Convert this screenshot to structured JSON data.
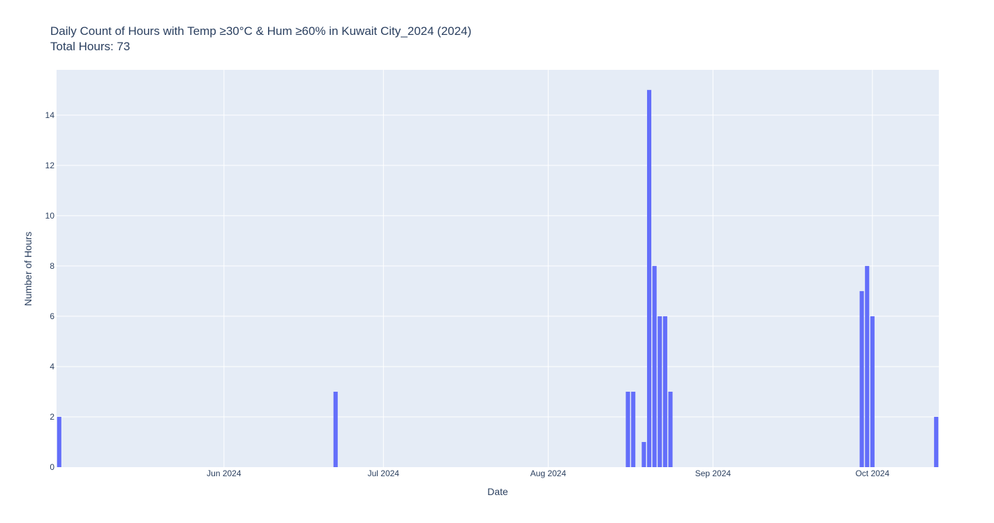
{
  "chart_data": {
    "type": "bar",
    "title": "Daily Count of Hours with Temp ≥30°C & Hum ≥60% in Kuwait City_2024 (2024)",
    "subtitle": "Total Hours: 73",
    "xlabel": "Date",
    "ylabel": "Number of Hours",
    "x_range": [
      "2024-05-01",
      "2024-10-13"
    ],
    "ylim": [
      0,
      15.8
    ],
    "y_ticks": [
      0,
      2,
      4,
      6,
      8,
      10,
      12,
      14
    ],
    "x_ticks": [
      {
        "date": "2024-06-01",
        "label": "Jun 2024"
      },
      {
        "date": "2024-07-01",
        "label": "Jul 2024"
      },
      {
        "date": "2024-08-01",
        "label": "Aug 2024"
      },
      {
        "date": "2024-09-01",
        "label": "Sep 2024"
      },
      {
        "date": "2024-10-01",
        "label": "Oct 2024"
      }
    ],
    "bar_color": "#636efa",
    "plot_bg": "#e5ecf6",
    "grid": true,
    "points": [
      {
        "x": "2024-05-01",
        "y": 2
      },
      {
        "x": "2024-06-22",
        "y": 3
      },
      {
        "x": "2024-08-16",
        "y": 3
      },
      {
        "x": "2024-08-17",
        "y": 3
      },
      {
        "x": "2024-08-19",
        "y": 1
      },
      {
        "x": "2024-08-20",
        "y": 15
      },
      {
        "x": "2024-08-21",
        "y": 8
      },
      {
        "x": "2024-08-22",
        "y": 6
      },
      {
        "x": "2024-08-23",
        "y": 6
      },
      {
        "x": "2024-08-24",
        "y": 3
      },
      {
        "x": "2024-09-29",
        "y": 7
      },
      {
        "x": "2024-09-30",
        "y": 8
      },
      {
        "x": "2024-10-01",
        "y": 6
      },
      {
        "x": "2024-10-13",
        "y": 2
      }
    ]
  }
}
